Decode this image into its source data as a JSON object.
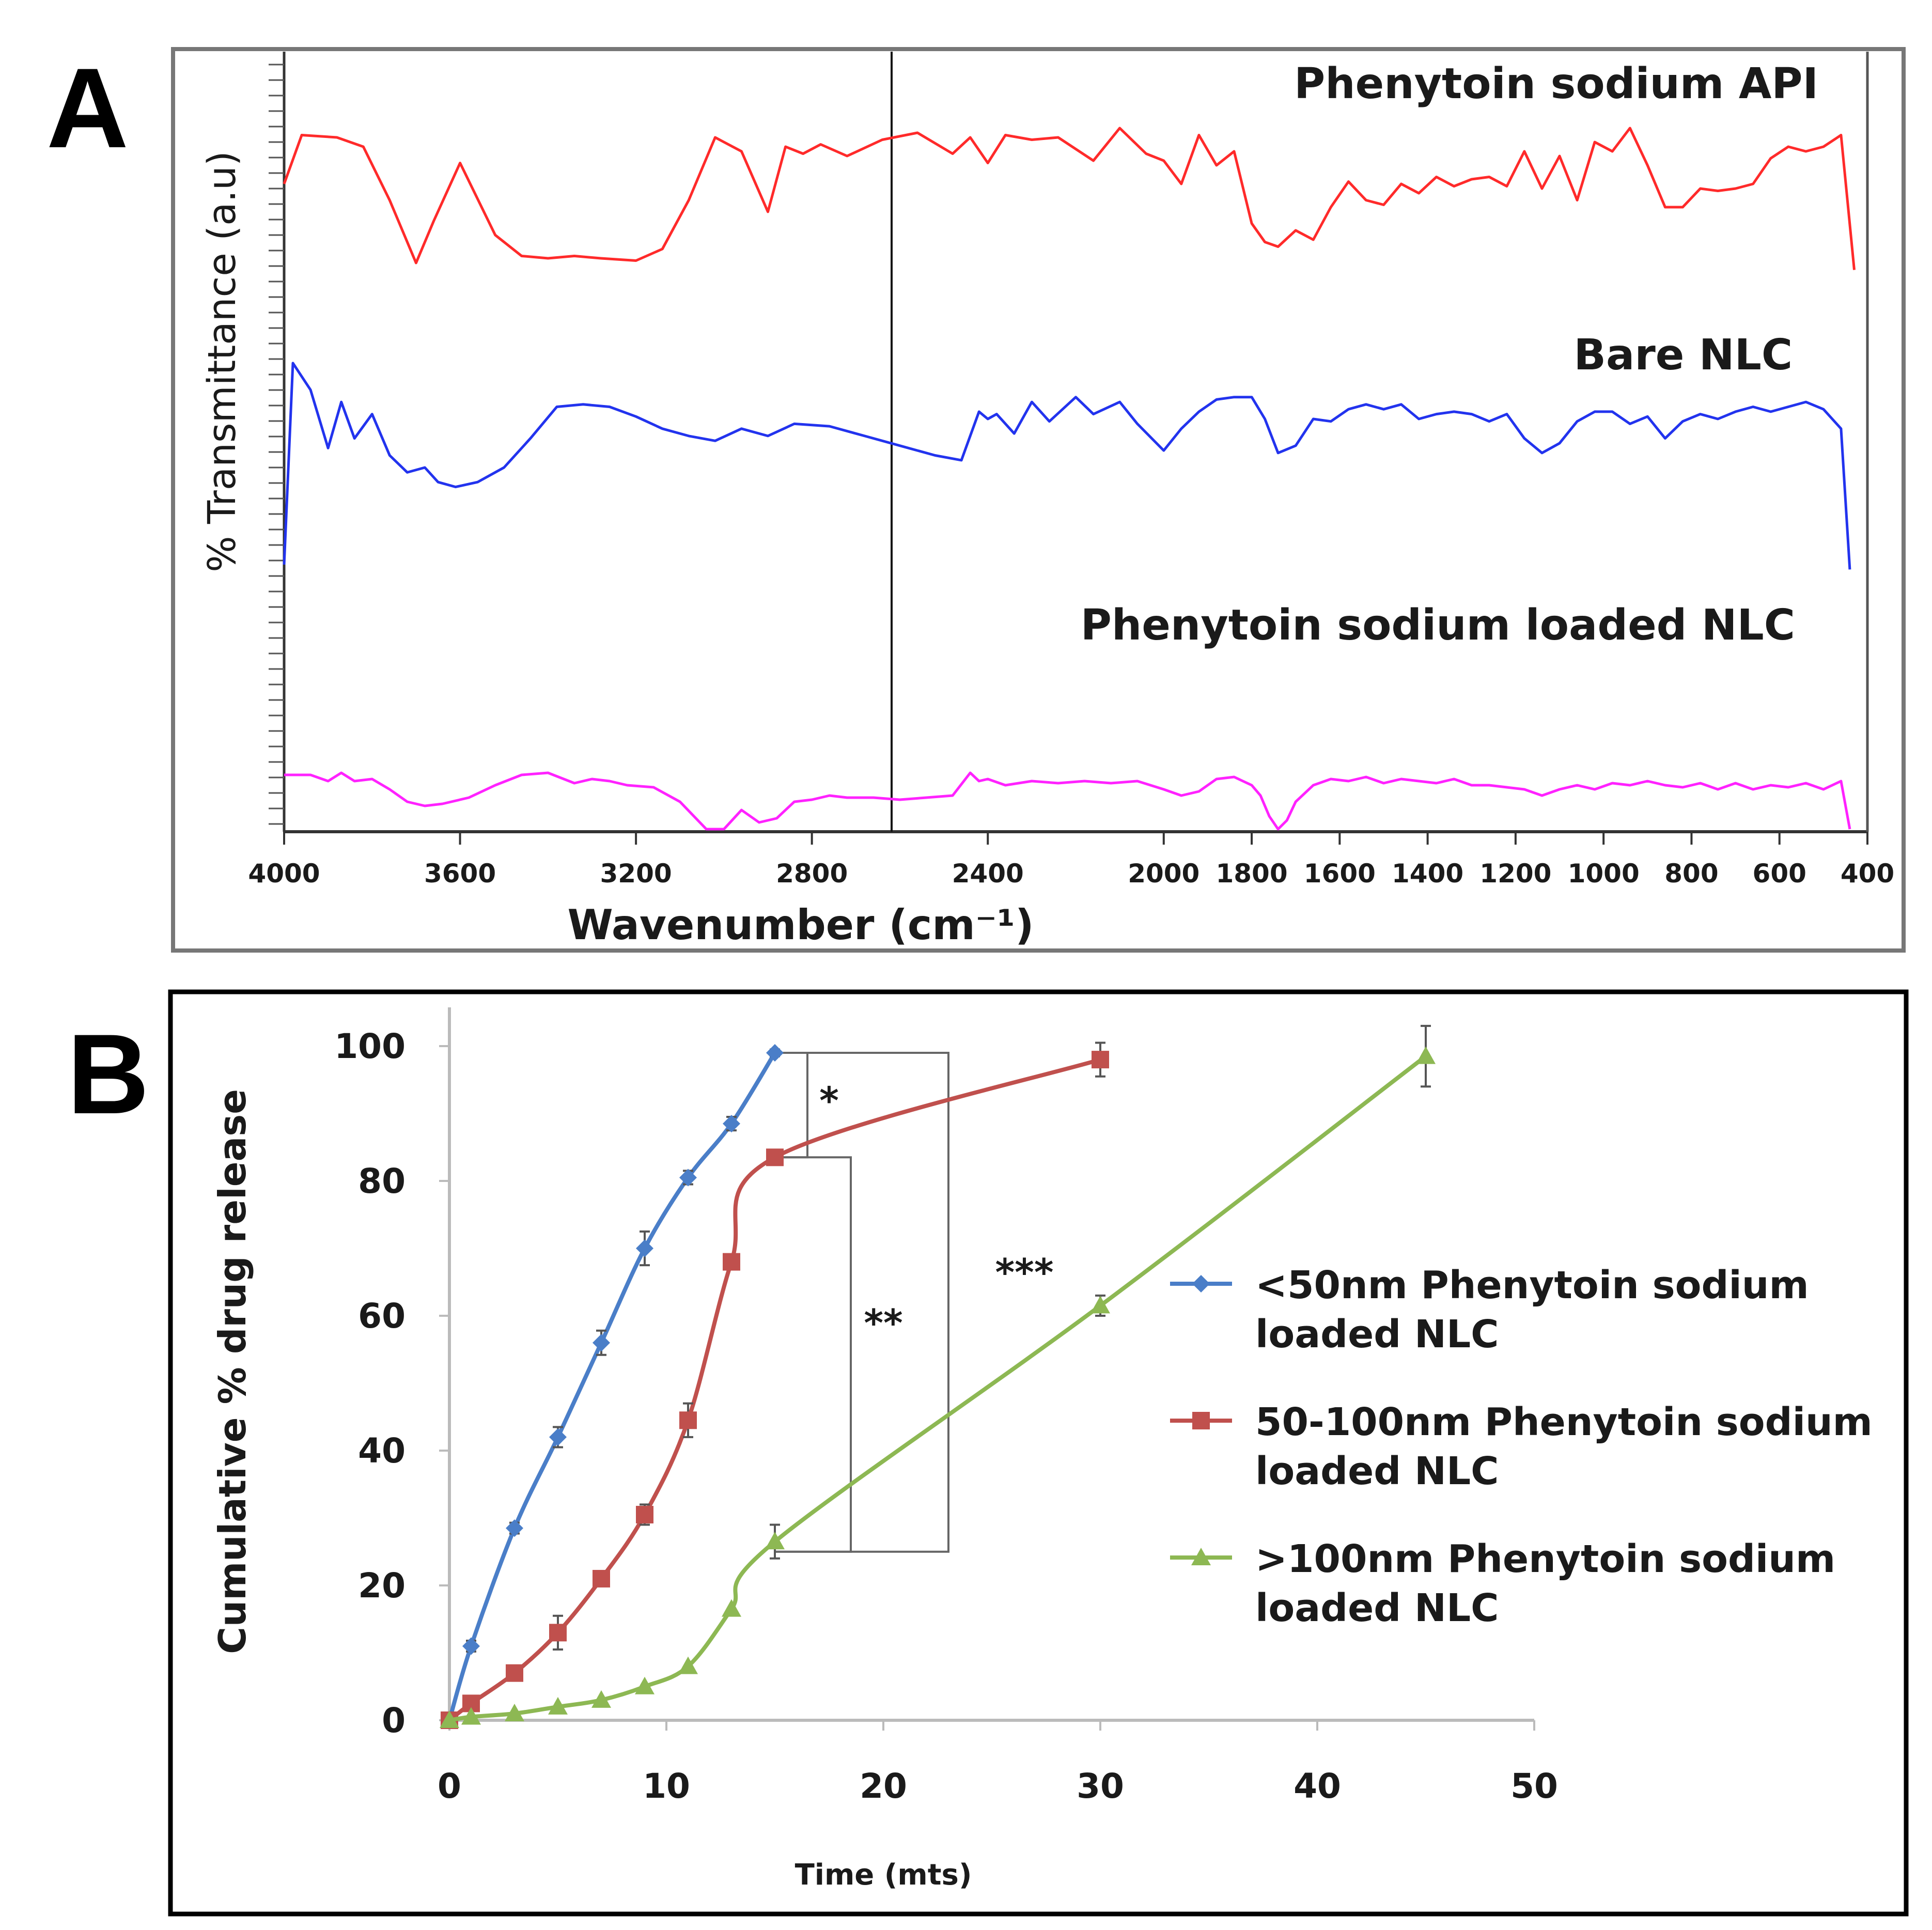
{
  "panels": [
    {
      "letter": "A",
      "chart_data": {
        "type": "line",
        "xlabel": "Wavenumber (cm⁻¹)",
        "ylabel": "% Transmittance (a.u)",
        "xlim": [
          4000,
          400
        ],
        "x_ticks": [
          "4000",
          "3600",
          "3200",
          "2800",
          "2400",
          "2000",
          "1800",
          "1600",
          "1400",
          "1200",
          "1000",
          "800",
          "600",
          "400"
        ],
        "series": [
          {
            "name": "Phenytoin sodium API",
            "color": "#ff2a2a",
            "x": [
              4000,
              3960,
              3880,
              3820,
              3760,
              3700,
              3660,
              3600,
              3520,
              3460,
              3400,
              3340,
              3280,
              3200,
              3140,
              3080,
              3020,
              2960,
              2900,
              2860,
              2820,
              2780,
              2720,
              2640,
              2560,
              2480,
              2440,
              2400,
              2360,
              2300,
              2240,
              2160,
              2100,
              2040,
              2000,
              1960,
              1920,
              1880,
              1840,
              1800,
              1770,
              1740,
              1700,
              1660,
              1620,
              1580,
              1540,
              1500,
              1460,
              1420,
              1380,
              1340,
              1300,
              1260,
              1220,
              1180,
              1140,
              1100,
              1060,
              1020,
              980,
              940,
              900,
              860,
              820,
              780,
              740,
              700,
              660,
              620,
              580,
              540,
              500,
              460,
              430
            ],
            "y": [
              0.72,
              0.93,
              0.92,
              0.88,
              0.65,
              0.38,
              0.56,
              0.81,
              0.5,
              0.41,
              0.4,
              0.41,
              0.4,
              0.39,
              0.44,
              0.65,
              0.92,
              0.86,
              0.6,
              0.88,
              0.85,
              0.89,
              0.84,
              0.91,
              0.94,
              0.85,
              0.92,
              0.81,
              0.93,
              0.91,
              0.92,
              0.82,
              0.96,
              0.85,
              0.82,
              0.72,
              0.93,
              0.8,
              0.86,
              0.55,
              0.47,
              0.45,
              0.52,
              0.48,
              0.62,
              0.73,
              0.65,
              0.63,
              0.72,
              0.68,
              0.75,
              0.71,
              0.74,
              0.75,
              0.71,
              0.86,
              0.7,
              0.84,
              0.65,
              0.9,
              0.86,
              0.96,
              0.8,
              0.62,
              0.62,
              0.7,
              0.69,
              0.7,
              0.72,
              0.83,
              0.88,
              0.86,
              0.88,
              0.93,
              0.35
            ]
          },
          {
            "name": "Bare NLC",
            "color": "#2233ee",
            "x": [
              4000,
              3980,
              3940,
              3900,
              3870,
              3840,
              3800,
              3760,
              3720,
              3680,
              3650,
              3610,
              3560,
              3500,
              3440,
              3380,
              3320,
              3260,
              3200,
              3140,
              3080,
              3020,
              2960,
              2900,
              2840,
              2760,
              2680,
              2600,
              2520,
              2460,
              2420,
              2400,
              2380,
              2340,
              2300,
              2260,
              2200,
              2160,
              2100,
              2060,
              2000,
              1960,
              1920,
              1880,
              1840,
              1800,
              1770,
              1740,
              1700,
              1660,
              1620,
              1580,
              1540,
              1500,
              1460,
              1420,
              1380,
              1340,
              1300,
              1260,
              1220,
              1180,
              1140,
              1100,
              1060,
              1020,
              980,
              940,
              900,
              860,
              820,
              780,
              740,
              700,
              660,
              620,
              580,
              540,
              500,
              460,
              440
            ],
            "y": [
              0.1,
              0.93,
              0.82,
              0.58,
              0.77,
              0.62,
              0.72,
              0.55,
              0.48,
              0.5,
              0.44,
              0.42,
              0.44,
              0.5,
              0.62,
              0.75,
              0.76,
              0.75,
              0.71,
              0.66,
              0.63,
              0.61,
              0.66,
              0.63,
              0.68,
              0.67,
              0.63,
              0.59,
              0.55,
              0.53,
              0.73,
              0.7,
              0.72,
              0.64,
              0.77,
              0.69,
              0.79,
              0.72,
              0.77,
              0.68,
              0.57,
              0.66,
              0.73,
              0.78,
              0.79,
              0.79,
              0.7,
              0.56,
              0.59,
              0.7,
              0.69,
              0.74,
              0.76,
              0.74,
              0.76,
              0.7,
              0.72,
              0.73,
              0.72,
              0.69,
              0.72,
              0.62,
              0.56,
              0.6,
              0.69,
              0.73,
              0.73,
              0.68,
              0.71,
              0.62,
              0.69,
              0.72,
              0.7,
              0.73,
              0.75,
              0.73,
              0.75,
              0.77,
              0.74,
              0.66,
              0.08
            ]
          },
          {
            "name": "Phenytoin sodium loaded NLC",
            "color": "#ff22ff",
            "x": [
              4000,
              3980,
              3940,
              3900,
              3870,
              3840,
              3800,
              3760,
              3720,
              3680,
              3640,
              3580,
              3520,
              3460,
              3400,
              3340,
              3300,
              3260,
              3220,
              3160,
              3100,
              3040,
              3000,
              2960,
              2920,
              2880,
              2840,
              2800,
              2760,
              2720,
              2660,
              2600,
              2540,
              2480,
              2440,
              2420,
              2400,
              2360,
              2300,
              2240,
              2180,
              2120,
              2060,
              2000,
              1960,
              1920,
              1880,
              1840,
              1800,
              1780,
              1760,
              1740,
              1720,
              1700,
              1660,
              1620,
              1580,
              1540,
              1500,
              1460,
              1420,
              1380,
              1340,
              1300,
              1260,
              1220,
              1180,
              1140,
              1100,
              1060,
              1020,
              980,
              940,
              900,
              860,
              820,
              780,
              740,
              700,
              660,
              620,
              580,
              540,
              500,
              460,
              440
            ],
            "y": [
              0.55,
              0.55,
              0.55,
              0.52,
              0.56,
              0.52,
              0.53,
              0.48,
              0.42,
              0.4,
              0.41,
              0.44,
              0.5,
              0.55,
              0.56,
              0.51,
              0.53,
              0.52,
              0.5,
              0.49,
              0.42,
              0.28,
              0.27,
              0.38,
              0.32,
              0.34,
              0.42,
              0.43,
              0.45,
              0.44,
              0.44,
              0.43,
              0.44,
              0.45,
              0.56,
              0.52,
              0.53,
              0.5,
              0.52,
              0.51,
              0.52,
              0.51,
              0.52,
              0.48,
              0.45,
              0.47,
              0.53,
              0.54,
              0.5,
              0.45,
              0.35,
              0.27,
              0.33,
              0.42,
              0.5,
              0.53,
              0.52,
              0.54,
              0.51,
              0.53,
              0.52,
              0.51,
              0.53,
              0.5,
              0.5,
              0.49,
              0.48,
              0.45,
              0.48,
              0.5,
              0.48,
              0.51,
              0.5,
              0.52,
              0.5,
              0.49,
              0.51,
              0.48,
              0.51,
              0.48,
              0.5,
              0.49,
              0.51,
              0.48,
              0.52,
              0.08
            ]
          }
        ]
      }
    },
    {
      "letter": "B",
      "chart_data": {
        "type": "line",
        "xlabel": "Time (mts)",
        "ylabel": "Cumulative % drug release",
        "xlim": [
          0,
          50
        ],
        "ylim": [
          0,
          100
        ],
        "x_ticks": [
          "0",
          "10",
          "20",
          "30",
          "40",
          "50"
        ],
        "y_ticks": [
          "0",
          "20",
          "40",
          "60",
          "80",
          "100"
        ],
        "series": [
          {
            "name": "<50nm Phenytoin sodium loaded NLC",
            "legend_lines": [
              "<50nm Phenytoin sodium",
              "loaded NLC"
            ],
            "color": "#4a7ec8",
            "marker": "diamond",
            "x": [
              0,
              1,
              3,
              5,
              7,
              9,
              11,
              13,
              15
            ],
            "y": [
              0,
              11,
              28.5,
              42,
              56,
              70,
              80.5,
              88.5,
              99
            ],
            "err": [
              0,
              0.8,
              0.8,
              1.5,
              1.8,
              2.5,
              1.0,
              1.0,
              0.5
            ]
          },
          {
            "name": "50-100nm Phenytoin sodium loaded NLC",
            "legend_lines": [
              "50-100nm Phenytoin sodium",
              "loaded NLC"
            ],
            "color": "#c0504d",
            "marker": "square",
            "x": [
              0,
              1,
              3,
              5,
              7,
              9,
              11,
              13,
              15,
              30
            ],
            "y": [
              0,
              2.5,
              7,
              13,
              21,
              30.5,
              44.5,
              68,
              83.5,
              98
            ],
            "err": [
              0,
              0.8,
              0.5,
              2.5,
              0.8,
              1.5,
              2.5,
              0.5,
              1.0,
              2.5
            ]
          },
          {
            "name": ">100nm Phenytoin sodium loaded NLC",
            "legend_lines": [
              ">100nm Phenytoin sodium",
              "loaded NLC"
            ],
            "color": "#8db853",
            "marker": "triangle",
            "x": [
              0,
              1,
              3,
              5,
              7,
              9,
              11,
              13,
              15,
              30,
              45
            ],
            "y": [
              0,
              0.5,
              1,
              2,
              3,
              5,
              8,
              16.5,
              26.5,
              61.5,
              98.5
            ],
            "err": [
              0,
              0,
              0,
              0,
              0,
              0,
              0,
              0,
              2.5,
              1.5,
              4.5
            ]
          }
        ],
        "significance": [
          {
            "label": "*"
          },
          {
            "label": "**"
          },
          {
            "label": "***"
          }
        ]
      }
    }
  ]
}
